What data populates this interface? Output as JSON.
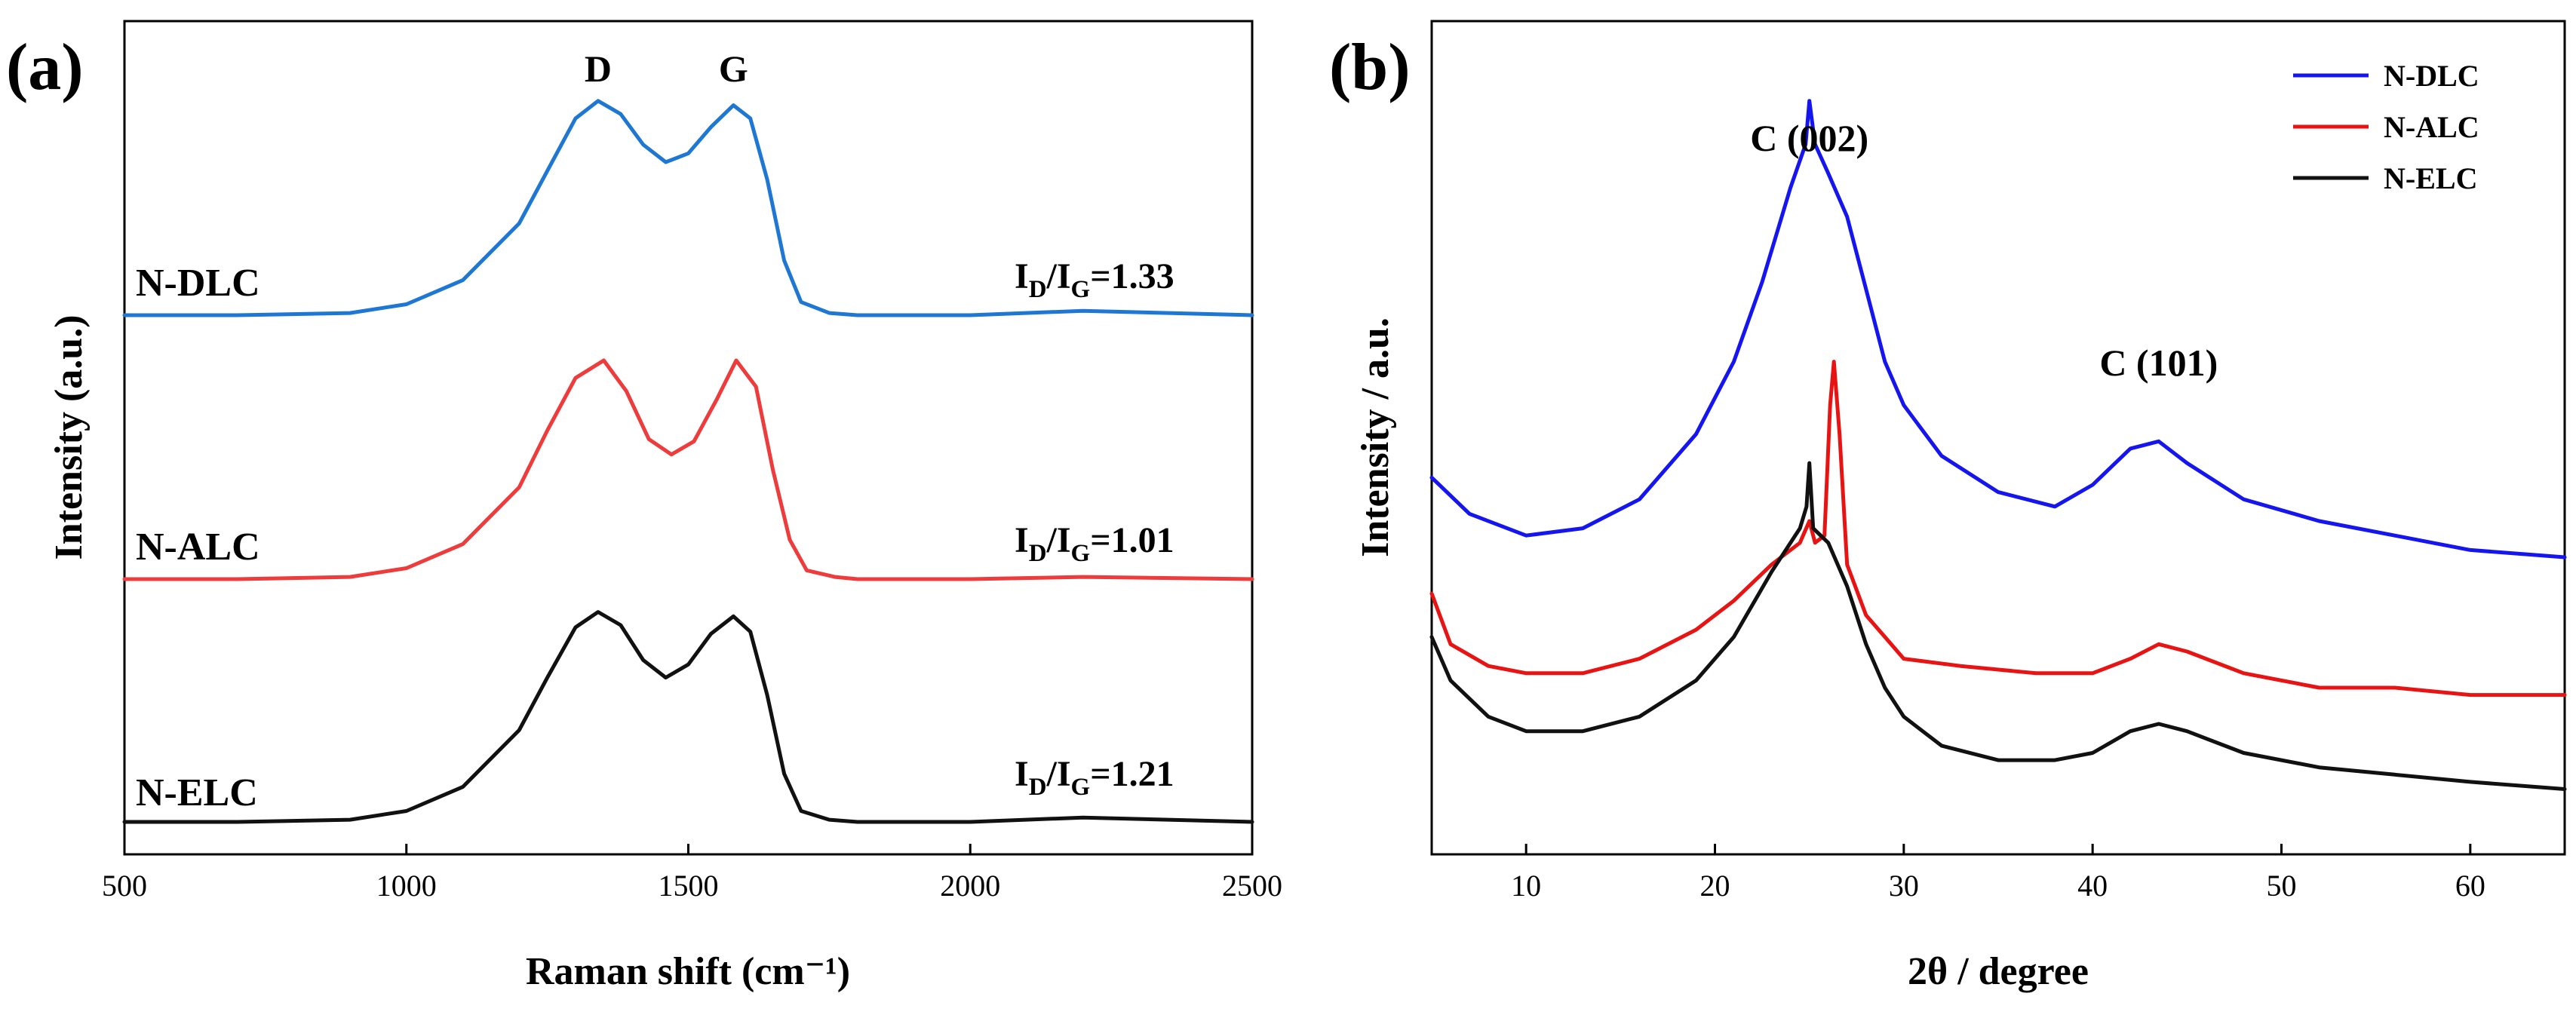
{
  "chart_data": [
    {
      "type": "line",
      "panel_label": "(a)",
      "xlabel": "Raman shift (cm⁻¹)",
      "ylabel": "Intensity (a.u.)",
      "xlim": [
        500,
        2500
      ],
      "xticks": [
        500,
        1000,
        1500,
        2000,
        2500
      ],
      "yticks": [],
      "peak_labels": [
        {
          "text": "D",
          "x": 1340
        },
        {
          "text": "G",
          "x": 1580
        }
      ],
      "series": [
        {
          "name": "N-DLC",
          "color": "#1f77d4",
          "offset": 2.05,
          "ratio_main": "I",
          "ratio_sub_1": "D",
          "ratio_slash": "/I",
          "ratio_sub_2": "G",
          "ratio_value": "=1.33",
          "x": [
            500,
            700,
            900,
            1000,
            1100,
            1200,
            1250,
            1300,
            1340,
            1380,
            1420,
            1460,
            1500,
            1540,
            1580,
            1610,
            1640,
            1670,
            1700,
            1750,
            1800,
            2000,
            2200,
            2500
          ],
          "y": [
            0,
            0,
            0.01,
            0.05,
            0.16,
            0.42,
            0.66,
            0.9,
            0.98,
            0.92,
            0.78,
            0.7,
            0.74,
            0.86,
            0.96,
            0.9,
            0.62,
            0.25,
            0.06,
            0.01,
            0,
            0,
            0.02,
            0
          ]
        },
        {
          "name": "N-ALC",
          "color": "#ee3b3b",
          "offset": 1.0,
          "ratio_main": "I",
          "ratio_sub_1": "D",
          "ratio_slash": "/I",
          "ratio_sub_2": "G",
          "ratio_value": "=1.01",
          "x": [
            500,
            700,
            900,
            1000,
            1100,
            1200,
            1250,
            1300,
            1350,
            1390,
            1430,
            1470,
            1510,
            1550,
            1585,
            1620,
            1650,
            1680,
            1710,
            1760,
            1800,
            2000,
            2200,
            2500
          ],
          "y": [
            0,
            0,
            0.01,
            0.05,
            0.16,
            0.42,
            0.68,
            0.92,
            1.0,
            0.86,
            0.64,
            0.57,
            0.63,
            0.82,
            1.0,
            0.88,
            0.5,
            0.18,
            0.04,
            0.01,
            0,
            0,
            0.01,
            0
          ]
        },
        {
          "name": "N-ELC",
          "color": "#111111",
          "offset": 0.0,
          "ratio_main": "I",
          "ratio_sub_1": "D",
          "ratio_slash": "/I",
          "ratio_sub_2": "G",
          "ratio_value": "=1.21",
          "x": [
            500,
            700,
            900,
            1000,
            1100,
            1200,
            1250,
            1300,
            1340,
            1380,
            1420,
            1460,
            1500,
            1540,
            1580,
            1610,
            1640,
            1670,
            1700,
            1750,
            1800,
            2000,
            2200,
            2500
          ],
          "y": [
            0,
            0,
            0.01,
            0.05,
            0.16,
            0.42,
            0.66,
            0.89,
            0.96,
            0.9,
            0.74,
            0.66,
            0.72,
            0.86,
            0.94,
            0.87,
            0.58,
            0.22,
            0.05,
            0.01,
            0,
            0,
            0.02,
            0
          ]
        }
      ]
    },
    {
      "type": "line",
      "panel_label": "(b)",
      "xlabel": "2θ / degree",
      "ylabel": "Intensity / a.u.",
      "xlim": [
        5,
        65
      ],
      "xticks": [
        10,
        20,
        30,
        40,
        50,
        60
      ],
      "yticks": [],
      "peak_labels": [
        {
          "text": "C (002)",
          "x": 25
        },
        {
          "text": "C (101)",
          "x": 43.5
        }
      ],
      "legend": {
        "position": "top-right"
      },
      "series": [
        {
          "name": "N-DLC",
          "color": "#1515f0",
          "x": [
            5,
            7,
            10,
            13,
            16,
            19,
            21,
            22.5,
            24,
            24.8,
            25.0,
            25.3,
            26,
            27,
            28,
            29,
            30,
            32,
            35,
            38,
            40,
            42,
            43.5,
            45,
            48,
            52,
            56,
            60,
            65
          ],
          "y": [
            52,
            47,
            44,
            45,
            49,
            58,
            68,
            79,
            92,
            98,
            104,
            98,
            94,
            88,
            78,
            68,
            62,
            55,
            50,
            48,
            51,
            56,
            57,
            54,
            49,
            46,
            44,
            42,
            41
          ]
        },
        {
          "name": "N-ALC",
          "color": "#e81414",
          "x": [
            5,
            6,
            8,
            10,
            13,
            16,
            19,
            21,
            23,
            24.5,
            25.0,
            25.3,
            25.8,
            26.1,
            26.3,
            26.6,
            27,
            28,
            29,
            30,
            33,
            37,
            40,
            42,
            43.5,
            45,
            48,
            52,
            56,
            60,
            65
          ],
          "y": [
            36,
            29,
            26,
            25,
            25,
            27,
            31,
            35,
            40,
            43,
            46,
            43,
            44,
            62,
            68,
            58,
            40,
            33,
            30,
            27,
            26,
            25,
            25,
            27,
            29,
            28,
            25,
            23,
            23,
            22,
            22
          ]
        },
        {
          "name": "N-ELC",
          "color": "#111111",
          "x": [
            5,
            6,
            8,
            10,
            13,
            16,
            19,
            21,
            23,
            24.5,
            24.85,
            25.0,
            25.2,
            26,
            27,
            28,
            29,
            30,
            32,
            35,
            38,
            40,
            42,
            43.5,
            45,
            48,
            52,
            56,
            60,
            65
          ],
          "y": [
            30,
            24,
            19,
            17,
            17,
            19,
            24,
            30,
            39,
            45,
            48,
            54,
            45,
            43,
            37,
            29,
            23,
            19,
            15,
            13,
            13,
            14,
            17,
            18,
            17,
            14,
            12,
            11,
            10,
            9
          ]
        }
      ]
    }
  ]
}
